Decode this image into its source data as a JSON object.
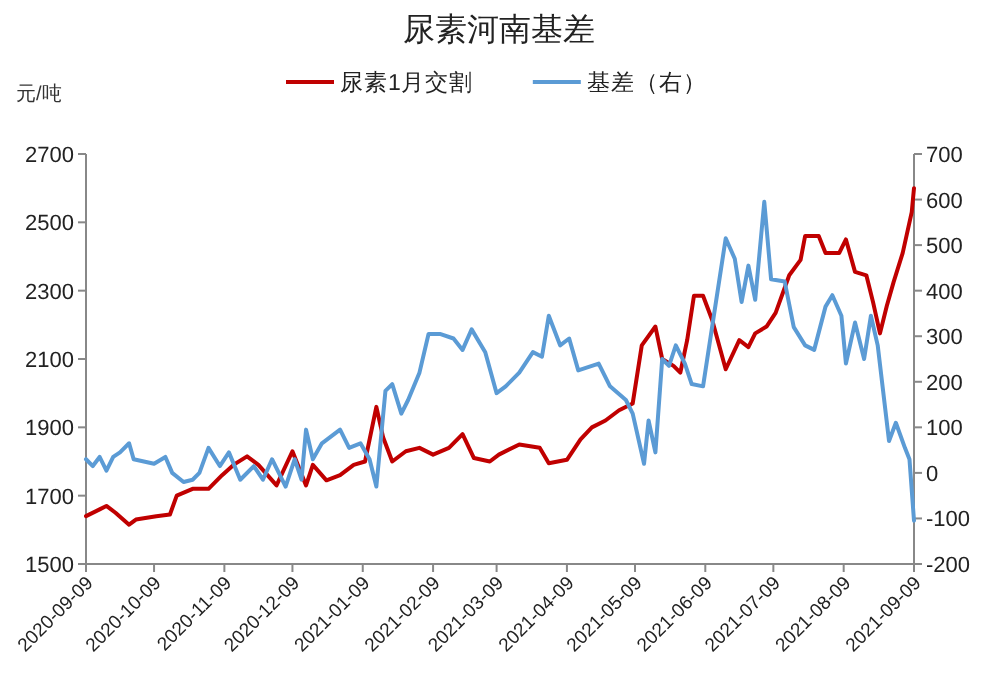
{
  "chart_data": {
    "type": "line",
    "title": "尿素河南基差",
    "ylabel": "元/吨",
    "legend": "top",
    "marker": "none",
    "line_style": "solid",
    "grid": false,
    "xlim": [
      "2020-09-09",
      "2021-09-09"
    ],
    "xticks": [
      "2020-09-09",
      "2020-10-09",
      "2020-11-09",
      "2020-12-09",
      "2021-01-09",
      "2021-02-09",
      "2021-03-09",
      "2021-04-09",
      "2021-05-09",
      "2021-06-09",
      "2021-07-09",
      "2021-08-09",
      "2021-09-09"
    ],
    "ylim": [
      1500,
      2700
    ],
    "yticks": [
      1500,
      1700,
      1900,
      2100,
      2300,
      2500,
      2700
    ],
    "y2lim": [
      -200,
      700
    ],
    "y2ticks": [
      -200,
      -100,
      0,
      100,
      200,
      300,
      400,
      500,
      600,
      700
    ],
    "series": [
      {
        "name": "尿素1月交割",
        "color": "#c00000",
        "x": [
          "2020-09-09",
          "2020-09-15",
          "2020-09-18",
          "2020-09-22",
          "2020-09-28",
          "2020-10-01",
          "2020-10-10",
          "2020-10-16",
          "2020-10-19",
          "2020-10-26",
          "2020-11-02",
          "2020-11-08",
          "2020-11-13",
          "2020-11-19",
          "2020-11-24",
          "2020-12-02",
          "2020-12-09",
          "2020-12-15",
          "2020-12-18",
          "2020-12-24",
          "2020-12-30",
          "2021-01-05",
          "2021-01-10",
          "2021-01-15",
          "2021-01-18",
          "2021-01-22",
          "2021-01-28",
          "2021-02-03",
          "2021-02-09",
          "2021-02-16",
          "2021-02-22",
          "2021-02-27",
          "2021-03-06",
          "2021-03-10",
          "2021-03-19",
          "2021-03-28",
          "2021-04-01",
          "2021-04-09",
          "2021-04-15",
          "2021-04-20",
          "2021-04-26",
          "2021-05-02",
          "2021-05-08",
          "2021-05-12",
          "2021-05-18",
          "2021-05-21",
          "2021-05-26",
          "2021-05-29",
          "2021-06-01",
          "2021-06-04",
          "2021-06-08",
          "2021-06-12",
          "2021-06-18",
          "2021-06-24",
          "2021-06-28",
          "2021-07-01",
          "2021-07-06",
          "2021-07-10",
          "2021-07-16",
          "2021-07-21",
          "2021-07-23",
          "2021-07-29",
          "2021-08-01",
          "2021-08-07",
          "2021-08-10",
          "2021-08-14",
          "2021-08-19",
          "2021-08-22",
          "2021-08-25",
          "2021-08-28",
          "2021-08-31",
          "2021-09-04",
          "2021-09-08",
          "2021-09-09"
        ],
        "values": [
          1640,
          1660,
          1670,
          1650,
          1615,
          1630,
          1640,
          1645,
          1700,
          1720,
          1720,
          1760,
          1790,
          1815,
          1790,
          1730,
          1830,
          1730,
          1790,
          1745,
          1760,
          1790,
          1800,
          1960,
          1870,
          1800,
          1830,
          1840,
          1820,
          1840,
          1880,
          1810,
          1800,
          1820,
          1850,
          1840,
          1795,
          1805,
          1865,
          1900,
          1920,
          1950,
          1970,
          2140,
          2195,
          2100,
          2080,
          2060,
          2155,
          2285,
          2285,
          2215,
          2070,
          2155,
          2135,
          2175,
          2195,
          2235,
          2345,
          2390,
          2460,
          2460,
          2410,
          2410,
          2450,
          2355,
          2345,
          2265,
          2175,
          2255,
          2325,
          2410,
          2530,
          2600
        ]
      },
      {
        "name": "基差（右）",
        "color": "#5b9bd5",
        "axis": "y2",
        "x": [
          "2020-09-09",
          "2020-09-12",
          "2020-09-15",
          "2020-09-18",
          "2020-09-21",
          "2020-09-24",
          "2020-09-28",
          "2020-09-30",
          "2020-10-09",
          "2020-10-14",
          "2020-10-17",
          "2020-10-22",
          "2020-10-26",
          "2020-10-29",
          "2020-11-02",
          "2020-11-07",
          "2020-11-11",
          "2020-11-16",
          "2020-11-22",
          "2020-11-26",
          "2020-11-30",
          "2020-12-06",
          "2020-12-10",
          "2020-12-13",
          "2020-12-15",
          "2020-12-18",
          "2020-12-22",
          "2020-12-30",
          "2021-01-03",
          "2021-01-08",
          "2021-01-12",
          "2021-01-15",
          "2021-01-19",
          "2021-01-22",
          "2021-01-26",
          "2021-01-29",
          "2021-02-03",
          "2021-02-07",
          "2021-02-12",
          "2021-02-18",
          "2021-02-22",
          "2021-02-26",
          "2021-03-04",
          "2021-03-09",
          "2021-03-13",
          "2021-03-19",
          "2021-03-25",
          "2021-03-29",
          "2021-04-01",
          "2021-04-06",
          "2021-04-10",
          "2021-04-14",
          "2021-04-20",
          "2021-04-23",
          "2021-04-28",
          "2021-05-05",
          "2021-05-08",
          "2021-05-13",
          "2021-05-15",
          "2021-05-18",
          "2021-05-21",
          "2021-05-24",
          "2021-05-27",
          "2021-05-31",
          "2021-06-03",
          "2021-06-08",
          "2021-06-12",
          "2021-06-18",
          "2021-06-22",
          "2021-06-25",
          "2021-06-28",
          "2021-07-01",
          "2021-07-05",
          "2021-07-08",
          "2021-07-14",
          "2021-07-18",
          "2021-07-23",
          "2021-07-27",
          "2021-08-01",
          "2021-08-04",
          "2021-08-08",
          "2021-08-10",
          "2021-08-14",
          "2021-08-18",
          "2021-08-21",
          "2021-08-24",
          "2021-08-29",
          "2021-09-01",
          "2021-09-05",
          "2021-09-07",
          "2021-09-09"
        ],
        "values": [
          30,
          15,
          35,
          5,
          35,
          45,
          65,
          30,
          20,
          35,
          0,
          -20,
          -15,
          0,
          55,
          15,
          45,
          -15,
          15,
          -15,
          30,
          -30,
          30,
          -15,
          95,
          30,
          65,
          95,
          55,
          65,
          30,
          -30,
          180,
          195,
          130,
          160,
          220,
          305,
          305,
          295,
          270,
          315,
          265,
          175,
          190,
          220,
          265,
          255,
          345,
          280,
          295,
          225,
          235,
          240,
          190,
          160,
          130,
          20,
          115,
          45,
          250,
          235,
          280,
          240,
          195,
          190,
          320,
          515,
          470,
          375,
          455,
          380,
          595,
          425,
          420,
          320,
          280,
          270,
          365,
          390,
          345,
          240,
          330,
          250,
          345,
          280,
          70,
          110,
          55,
          30,
          -105
        ]
      }
    ]
  }
}
